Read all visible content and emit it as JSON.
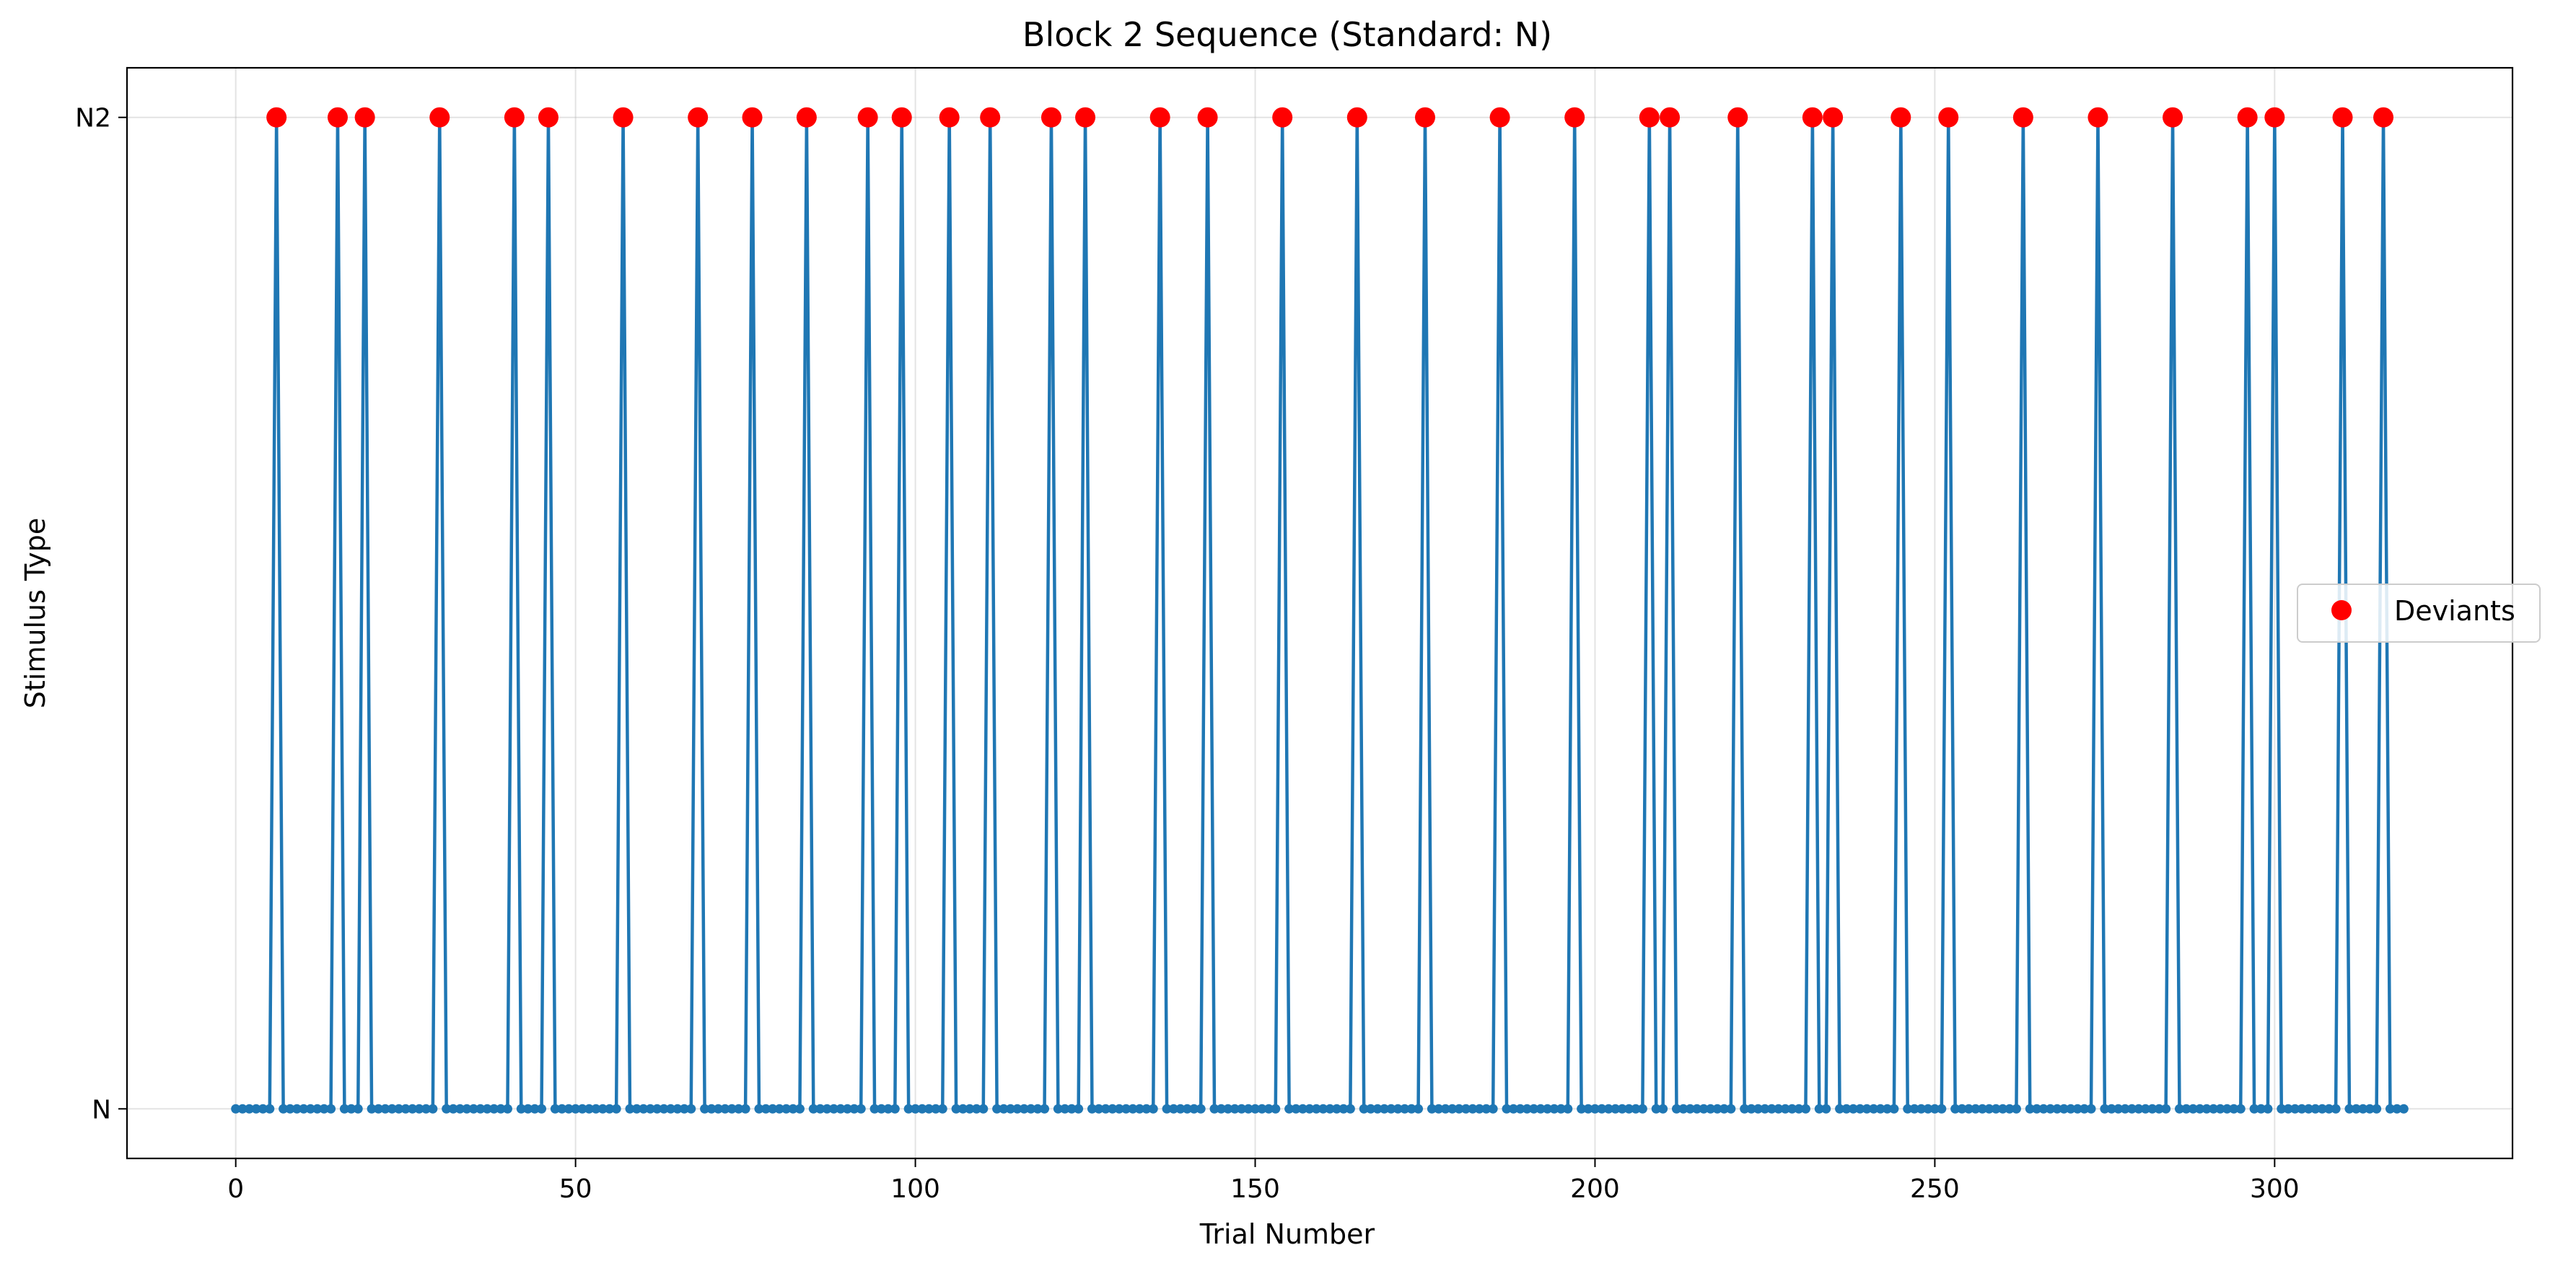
{
  "chart_data": {
    "type": "line",
    "title": "Block 2 Sequence (Standard: N)",
    "xlabel": "Trial Number",
    "ylabel": "Stimulus Type",
    "xlim": [
      -16,
      335
    ],
    "ylim": [
      -0.05,
      1.05
    ],
    "x_ticks": [
      0,
      50,
      100,
      150,
      200,
      250,
      300
    ],
    "y_ticks": [
      {
        "value": 0,
        "label": "N"
      },
      {
        "value": 1,
        "label": "N2"
      }
    ],
    "grid": true,
    "n_trials": 320,
    "line_color": "#1f77b4",
    "deviant_color": "#ff0000",
    "deviant_trials": [
      6,
      15,
      19,
      30,
      41,
      46,
      57,
      68,
      76,
      84,
      93,
      98,
      105,
      111,
      120,
      125,
      136,
      143,
      154,
      165,
      175,
      186,
      197,
      208,
      211,
      221,
      232,
      235,
      245,
      252,
      263,
      274,
      285,
      296,
      300,
      310,
      316
    ],
    "series": [
      {
        "name": "Deviants",
        "marker": "circle",
        "color": "#ff0000"
      }
    ],
    "legend": {
      "position": "center-right",
      "entries": [
        "Deviants"
      ]
    }
  }
}
